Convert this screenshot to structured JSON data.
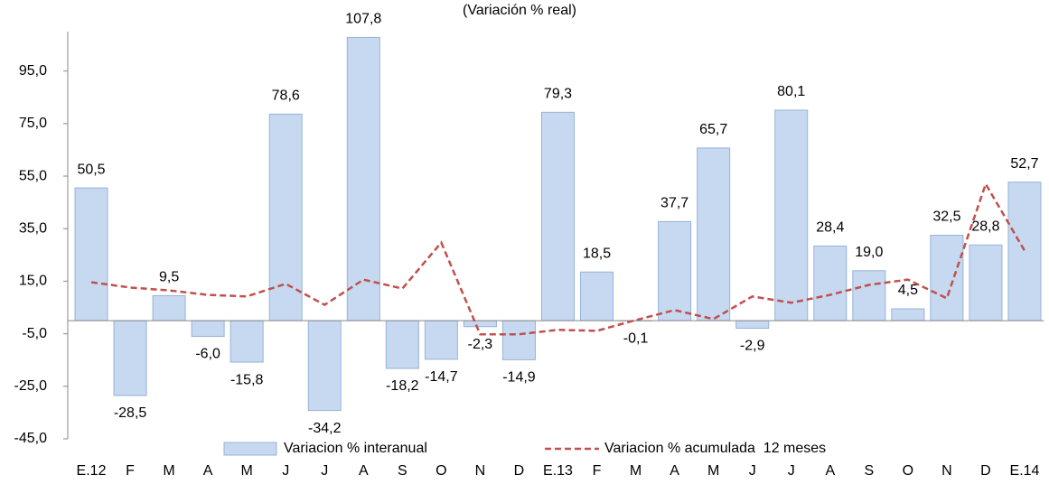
{
  "chart_data": {
    "type": "bar_line",
    "title": "(Variación % real)",
    "categories": [
      "E.12",
      "F",
      "M",
      "A",
      "M",
      "J",
      "J",
      "A",
      "S",
      "O",
      "N",
      "D",
      "E.13",
      "F",
      "M",
      "A",
      "M",
      "J",
      "J",
      "A",
      "S",
      "O",
      "N",
      "D",
      "E.14"
    ],
    "series": [
      {
        "name": "Variacion % interanual",
        "type": "bar",
        "color": "#c6d9f1",
        "values": [
          50.5,
          -28.5,
          9.5,
          -6.0,
          -15.8,
          78.6,
          -34.2,
          107.8,
          -18.2,
          -14.7,
          -2.3,
          -14.9,
          79.3,
          18.5,
          -0.1,
          37.7,
          65.7,
          -2.9,
          80.1,
          28.4,
          19.0,
          4.5,
          32.5,
          28.8,
          52.7
        ],
        "value_labels": [
          "50,5",
          "-28,5",
          "9,5",
          "-6,0",
          "-15,8",
          "78,6",
          "-34,2",
          "107,8",
          "-18,2",
          "-14,7",
          "-2,3",
          "-14,9",
          "79,3",
          "18,5",
          "-0,1",
          "37,7",
          "65,7",
          "-2,9",
          "80,1",
          "28,4",
          "19,0",
          "4,5",
          "32,5",
          "28,8",
          "52,7"
        ]
      },
      {
        "name": "Variacion % acumulada  12 meses",
        "type": "line",
        "color": "#c0504d",
        "values": [
          14.6,
          12.6,
          11.5,
          9.8,
          9.2,
          14.0,
          6.0,
          15.6,
          12.2,
          29.7,
          -5.2,
          -5.2,
          -3.5,
          -3.9,
          0.2,
          4.0,
          0.6,
          9.2,
          6.8,
          9.8,
          13.6,
          15.6,
          8.5,
          52.0,
          26.6
        ]
      }
    ],
    "ylim": [
      -45,
      110
    ],
    "yticks": [
      {
        "value": -45,
        "label": "-45,0"
      },
      {
        "value": -25,
        "label": "-25,0"
      },
      {
        "value": -5,
        "label": "-5,0"
      },
      {
        "value": 15,
        "label": "15,0"
      },
      {
        "value": 35,
        "label": "35,0"
      },
      {
        "value": 55,
        "label": "55,0"
      },
      {
        "value": 75,
        "label": "75,0"
      },
      {
        "value": 95,
        "label": "95,0"
      }
    ],
    "grid": false,
    "legend": "bottom"
  }
}
